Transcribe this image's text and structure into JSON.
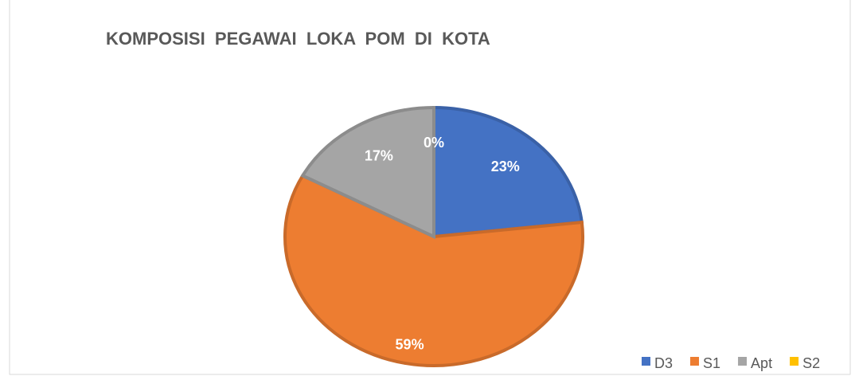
{
  "chart_data": {
    "type": "pie",
    "title": "KOMPOSISI  PEGAWAI  LOKA  POM  DI  KOTA",
    "categories": [
      "D3",
      "S1",
      "Apt",
      "S2"
    ],
    "values": [
      23,
      59,
      17,
      0
    ],
    "value_labels": [
      "23%",
      "59%",
      "17%",
      "0%"
    ],
    "colors": [
      "#4472c4",
      "#ed7d31",
      "#a5a5a5",
      "#ffc000"
    ],
    "legend": "bottom-right"
  }
}
